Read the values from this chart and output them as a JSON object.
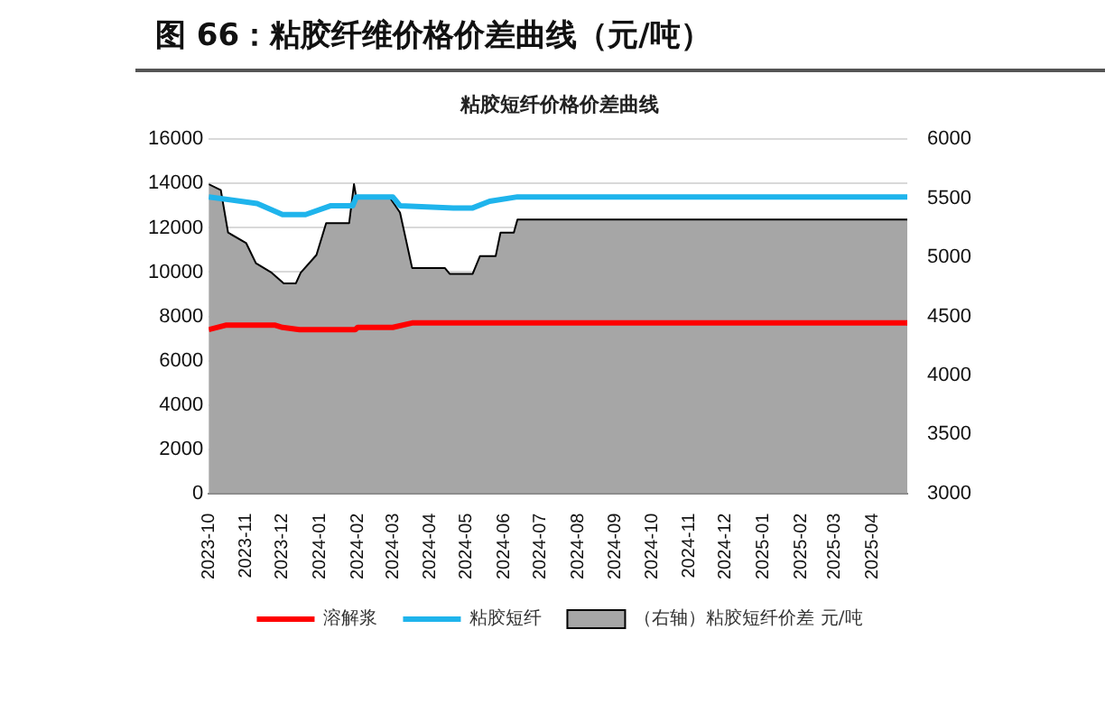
{
  "chart_data": {
    "type": "line",
    "title": "图 66：粘胶纤维价格价差曲线（元/吨）",
    "subtitle": "粘胶短纤价格价差曲线",
    "xlim": [
      "2023-10-01",
      "2025-04-30"
    ],
    "xticks": [
      "2023-10",
      "2023-11",
      "2023-12",
      "2024-01",
      "2024-02",
      "2024-03",
      "2024-04",
      "2024-05",
      "2024-06",
      "2024-07",
      "2024-08",
      "2024-09",
      "2024-10",
      "2024-11",
      "2024-12",
      "2025-01",
      "2025-02",
      "2025-03",
      "2025-04"
    ],
    "ylim": [
      0,
      16000
    ],
    "yticks": [
      0,
      2000,
      4000,
      6000,
      8000,
      10000,
      12000,
      14000,
      16000
    ],
    "y2lim": [
      3000,
      6000
    ],
    "y2ticks": [
      3000,
      3500,
      4000,
      4500,
      5000,
      5500,
      6000
    ],
    "grid": "y",
    "legend": "bottom",
    "series": [
      {
        "name": "（右轴）粘胶短纤价差 元/吨",
        "type": "area",
        "axis": "y2",
        "color": "#a6a6a6",
        "x": [
          "2023-10-01",
          "2023-10-11",
          "2023-10-17",
          "2023-11-01",
          "2023-11-09",
          "2023-11-22",
          "2023-12-02",
          "2023-12-12",
          "2023-12-16",
          "2023-12-29",
          "2024-01-06",
          "2024-01-25",
          "2024-01-29",
          "2024-01-31",
          "2024-02-28",
          "2024-03-07",
          "2024-03-17",
          "2024-04-13",
          "2024-04-17",
          "2024-05-06",
          "2024-05-12",
          "2024-05-25",
          "2024-05-29",
          "2024-06-09",
          "2024-06-12",
          "2025-04-30"
        ],
        "values": [
          5620,
          5570,
          5210,
          5120,
          4950,
          4870,
          4780,
          4780,
          4870,
          5020,
          5290,
          5290,
          5620,
          5500,
          5500,
          5380,
          4910,
          4910,
          4860,
          4860,
          5010,
          5010,
          5210,
          5210,
          5320,
          5320
        ]
      },
      {
        "name": "粘胶短纤",
        "type": "line",
        "color": "#1fb4ec",
        "x": [
          "2023-10-01",
          "2023-11-10",
          "2023-12-01",
          "2023-12-20",
          "2024-01-10",
          "2024-01-28",
          "2024-01-31",
          "2024-03-01",
          "2024-03-07",
          "2024-04-20",
          "2024-05-06",
          "2024-05-20",
          "2024-06-12",
          "2025-04-30"
        ],
        "values": [
          13400,
          13100,
          12600,
          12600,
          13000,
          13000,
          13400,
          13400,
          13000,
          12900,
          12900,
          13200,
          13400,
          13400
        ]
      },
      {
        "name": "溶解浆",
        "type": "line",
        "color": "#ff0000",
        "x": [
          "2023-10-01",
          "2023-10-15",
          "2023-11-25",
          "2023-12-01",
          "2023-12-15",
          "2024-01-30",
          "2024-02-01",
          "2024-03-01",
          "2024-03-17",
          "2025-04-30"
        ],
        "values": [
          7400,
          7600,
          7600,
          7500,
          7400,
          7400,
          7500,
          7500,
          7700,
          7700
        ]
      }
    ]
  }
}
